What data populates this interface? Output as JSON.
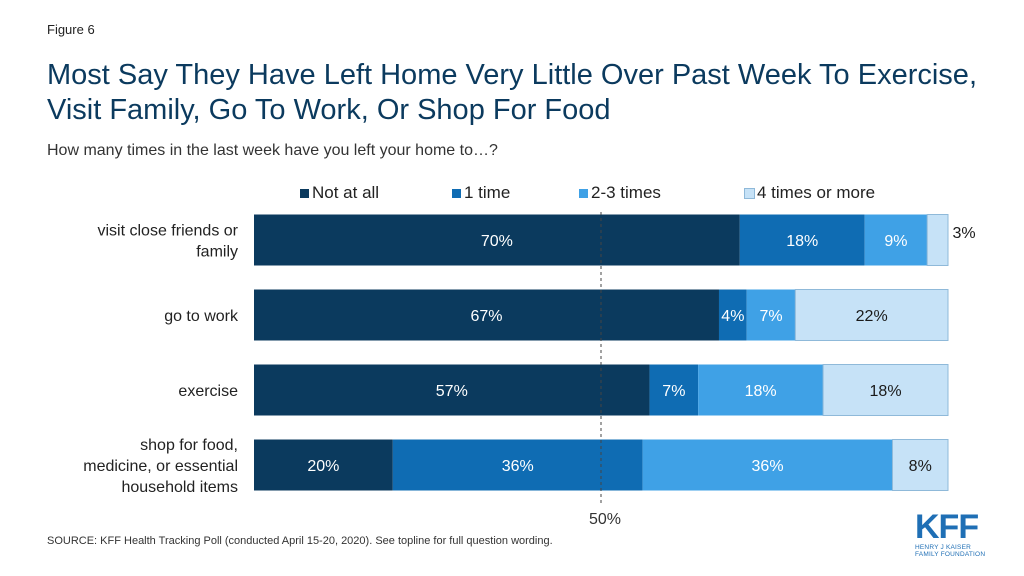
{
  "figure_label": "Figure 6",
  "title": "Most Say They Have Left Home Very Little Over Past Week To Exercise, Visit Family, Go To Work, Or Shop For Food",
  "subtitle": "How many times in the last week have you left your home to…?",
  "source": "SOURCE: KFF Health Tracking Poll (conducted April 15-20, 2020). See topline for full question wording.",
  "logo": {
    "mark": "KFF",
    "line1": "HENRY J KAISER",
    "line2": "FAMILY FOUNDATION"
  },
  "colors": {
    "not_at_all": "#0b3a5e",
    "one_time": "#0f6cb3",
    "two_three": "#3fa1e6",
    "four_more": "#c6e2f7"
  },
  "chart_data": {
    "type": "bar",
    "orientation": "horizontal",
    "stacked": true,
    "categories": [
      [
        "visit close friends or",
        "family"
      ],
      [
        "go to work"
      ],
      [
        "exercise"
      ],
      [
        "shop for food,",
        "medicine, or essential",
        "household items"
      ]
    ],
    "series": [
      {
        "name": "Not at all",
        "values": [
          70,
          67,
          57,
          20
        ]
      },
      {
        "name": "1 time",
        "values": [
          18,
          4,
          7,
          36
        ]
      },
      {
        "name": "2-3 times",
        "values": [
          9,
          7,
          18,
          36
        ]
      },
      {
        "name": "4 times or more",
        "values": [
          3,
          22,
          18,
          8
        ]
      }
    ],
    "data_label_suffix": "%",
    "reference_line": {
      "value": 50,
      "label": "50%"
    },
    "xlim": [
      0,
      100
    ],
    "legend_position": "top"
  }
}
